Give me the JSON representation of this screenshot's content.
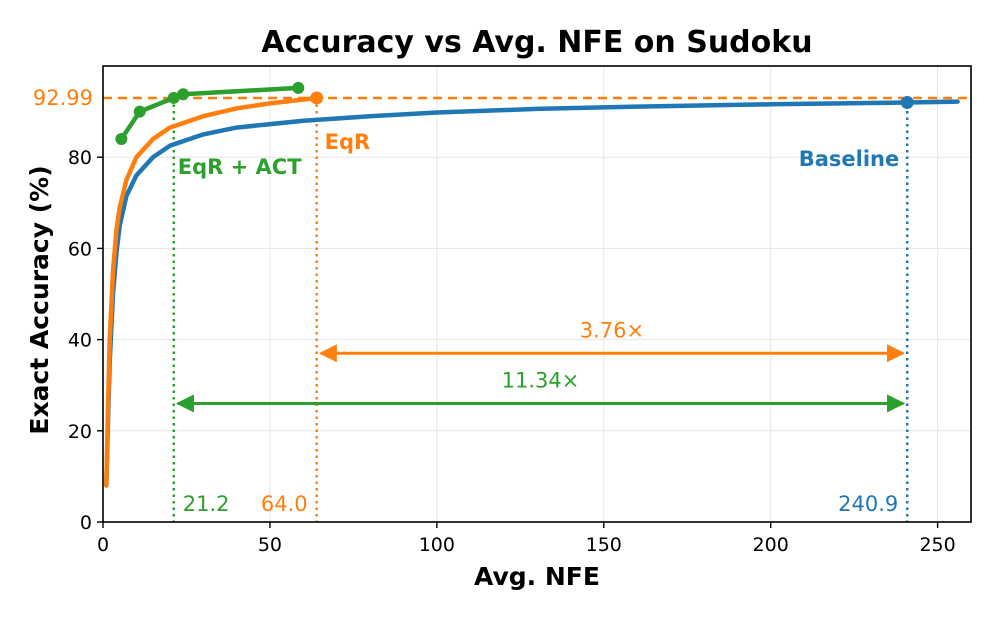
{
  "chart_data": {
    "type": "line",
    "title": "Accuracy vs Avg. NFE on Sudoku",
    "xlabel": "Avg. NFE",
    "ylabel": "Exact Accuracy (%)",
    "xlim": [
      0,
      260
    ],
    "ylim": [
      0,
      100
    ],
    "xticks": [
      0,
      50,
      100,
      150,
      200,
      250
    ],
    "yticks": [
      0,
      20,
      40,
      60,
      80
    ],
    "grid": true,
    "colors": {
      "baseline": "#1f77b4",
      "eqr": "#ff7f0e",
      "act": "#2ca02c"
    },
    "series": [
      {
        "name": "Baseline",
        "color": "#1f77b4",
        "points": [
          [
            1,
            8
          ],
          [
            1.5,
            22
          ],
          [
            2,
            35
          ],
          [
            3,
            50
          ],
          [
            4,
            59
          ],
          [
            5,
            65
          ],
          [
            7,
            71.5
          ],
          [
            10,
            76
          ],
          [
            15,
            80
          ],
          [
            20,
            82.5
          ],
          [
            30,
            85
          ],
          [
            40,
            86.5
          ],
          [
            60,
            88
          ],
          [
            80,
            89
          ],
          [
            100,
            89.8
          ],
          [
            130,
            90.6
          ],
          [
            160,
            91.1
          ],
          [
            200,
            91.6
          ],
          [
            240.9,
            92
          ],
          [
            256,
            92.2
          ]
        ]
      },
      {
        "name": "EqR",
        "color": "#ff7f0e",
        "points": [
          [
            1,
            8
          ],
          [
            1.5,
            25
          ],
          [
            2,
            40
          ],
          [
            3,
            55
          ],
          [
            4,
            64
          ],
          [
            5,
            69
          ],
          [
            7,
            75
          ],
          [
            10,
            80
          ],
          [
            15,
            84
          ],
          [
            20,
            86.5
          ],
          [
            30,
            89
          ],
          [
            40,
            90.7
          ],
          [
            50,
            91.8
          ],
          [
            64,
            92.99
          ]
        ]
      },
      {
        "name": "EqR + ACT",
        "color": "#2ca02c",
        "points": [
          [
            5.5,
            84
          ],
          [
            11,
            90
          ],
          [
            21.2,
            93
          ],
          [
            24,
            93.8
          ],
          [
            58.5,
            95.2
          ]
        ]
      }
    ],
    "markers": [
      {
        "series": "EqR",
        "x": 64.0,
        "y": 92.99
      },
      {
        "series": "Baseline",
        "x": 240.9,
        "y": 92.0
      }
    ],
    "reference_line": {
      "y": 92.99,
      "label": "92.99",
      "color": "#ff7f0e"
    },
    "vlines": [
      {
        "x": 21.2,
        "color": "#2ca02c",
        "label": "21.2",
        "name_label": "EqR + ACT"
      },
      {
        "x": 64.0,
        "color": "#ff7f0e",
        "label": "64.0",
        "name_label": "EqR"
      },
      {
        "x": 240.9,
        "color": "#1f77b4",
        "label": "240.9",
        "name_label": "Baseline"
      }
    ],
    "arrows": [
      {
        "from": 64.0,
        "to": 240.9,
        "y": 37,
        "label": "3.76×",
        "color": "#ff7f0e"
      },
      {
        "from": 21.2,
        "to": 240.9,
        "y": 26,
        "label": "11.34×",
        "color": "#2ca02c"
      }
    ]
  }
}
